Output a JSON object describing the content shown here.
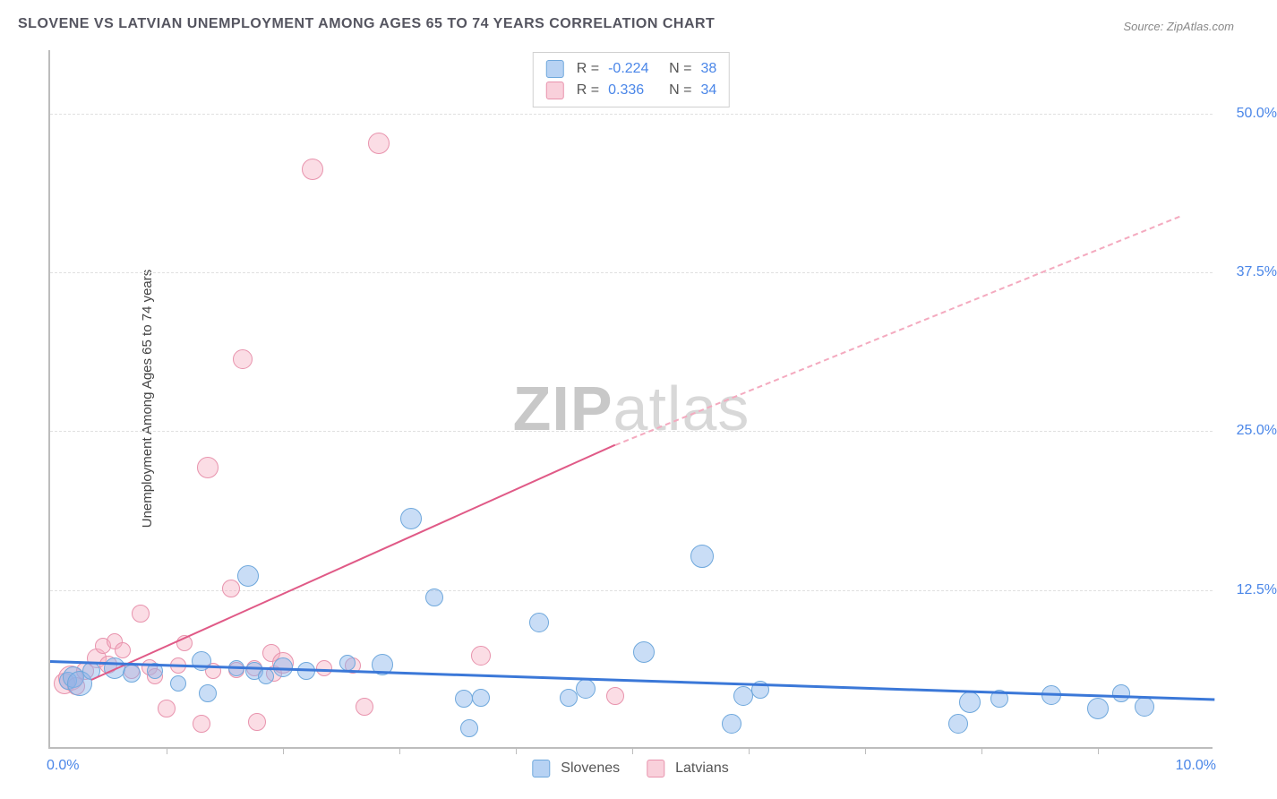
{
  "title": "SLOVENE VS LATVIAN UNEMPLOYMENT AMONG AGES 65 TO 74 YEARS CORRELATION CHART",
  "source": "Source: ZipAtlas.com",
  "ylabel": "Unemployment Among Ages 65 to 74 years",
  "watermark_a": "ZIP",
  "watermark_b": "atlas",
  "chart": {
    "type": "scatter",
    "xlim": [
      0,
      10
    ],
    "ylim": [
      0,
      55
    ],
    "x_ticks_minor": [
      1,
      2,
      3,
      4,
      5,
      6,
      7,
      8,
      9
    ],
    "y_gridlines": [
      12.5,
      25.0,
      37.5,
      50.0
    ],
    "xtick_labels": {
      "min": "0.0%",
      "max": "10.0%"
    },
    "ytick_labels": [
      "12.5%",
      "25.0%",
      "37.5%",
      "50.0%"
    ],
    "background_color": "#ffffff",
    "grid_color": "#e0e0e0",
    "axis_color": "#bdbdbd",
    "series": {
      "slovenes": {
        "label": "Slovenes",
        "color_fill": "#a8cdf0",
        "color_stroke": "#6fa8dc",
        "R": "-0.224",
        "N": "38",
        "trend": {
          "x1": 0,
          "y1": 7.0,
          "x2": 10,
          "y2": 4.0,
          "color": "#3b78d8",
          "width": 3,
          "style": "solid"
        },
        "points": [
          {
            "x": 0.15,
            "y": 5.2,
            "r": 10
          },
          {
            "x": 0.2,
            "y": 5.5,
            "r": 12
          },
          {
            "x": 0.25,
            "y": 5.0,
            "r": 14
          },
          {
            "x": 0.35,
            "y": 6.0,
            "r": 10
          },
          {
            "x": 0.55,
            "y": 6.2,
            "r": 12
          },
          {
            "x": 0.7,
            "y": 5.8,
            "r": 10
          },
          {
            "x": 0.9,
            "y": 6.0,
            "r": 9
          },
          {
            "x": 1.1,
            "y": 5.0,
            "r": 9
          },
          {
            "x": 1.3,
            "y": 6.8,
            "r": 11
          },
          {
            "x": 1.35,
            "y": 4.2,
            "r": 10
          },
          {
            "x": 1.6,
            "y": 6.2,
            "r": 9
          },
          {
            "x": 1.7,
            "y": 13.5,
            "r": 12
          },
          {
            "x": 1.75,
            "y": 6.0,
            "r": 10
          },
          {
            "x": 1.85,
            "y": 5.6,
            "r": 9
          },
          {
            "x": 2.0,
            "y": 6.3,
            "r": 11
          },
          {
            "x": 2.2,
            "y": 6.0,
            "r": 10
          },
          {
            "x": 2.55,
            "y": 6.6,
            "r": 9
          },
          {
            "x": 2.85,
            "y": 6.5,
            "r": 12
          },
          {
            "x": 3.1,
            "y": 18.0,
            "r": 12
          },
          {
            "x": 3.3,
            "y": 11.8,
            "r": 10
          },
          {
            "x": 3.55,
            "y": 3.8,
            "r": 10
          },
          {
            "x": 3.6,
            "y": 1.5,
            "r": 10
          },
          {
            "x": 3.7,
            "y": 3.9,
            "r": 10
          },
          {
            "x": 4.2,
            "y": 9.8,
            "r": 11
          },
          {
            "x": 4.45,
            "y": 3.9,
            "r": 10
          },
          {
            "x": 4.6,
            "y": 4.6,
            "r": 11
          },
          {
            "x": 5.1,
            "y": 7.5,
            "r": 12
          },
          {
            "x": 5.6,
            "y": 15.0,
            "r": 13
          },
          {
            "x": 5.85,
            "y": 1.8,
            "r": 11
          },
          {
            "x": 5.95,
            "y": 4.0,
            "r": 11
          },
          {
            "x": 6.1,
            "y": 4.5,
            "r": 10
          },
          {
            "x": 7.8,
            "y": 1.8,
            "r": 11
          },
          {
            "x": 7.9,
            "y": 3.5,
            "r": 12
          },
          {
            "x": 8.15,
            "y": 3.8,
            "r": 10
          },
          {
            "x": 8.6,
            "y": 4.1,
            "r": 11
          },
          {
            "x": 9.0,
            "y": 3.0,
            "r": 12
          },
          {
            "x": 9.2,
            "y": 4.2,
            "r": 10
          },
          {
            "x": 9.4,
            "y": 3.2,
            "r": 11
          }
        ]
      },
      "latvians": {
        "label": "Latvians",
        "color_fill": "#f8c5d4",
        "color_stroke": "#e893ad",
        "R": "0.336",
        "N": "34",
        "trend_solid": {
          "x1": 0.35,
          "y1": 5.5,
          "x2": 4.85,
          "y2": 24.0,
          "color": "#e05a87",
          "width": 2.5,
          "style": "solid"
        },
        "trend_dash": {
          "x1": 4.85,
          "y1": 24.0,
          "x2": 9.7,
          "y2": 42.0,
          "color": "#f4aabf",
          "width": 2,
          "style": "dashed"
        },
        "points": [
          {
            "x": 0.12,
            "y": 5.0,
            "r": 12
          },
          {
            "x": 0.18,
            "y": 5.4,
            "r": 14
          },
          {
            "x": 0.22,
            "y": 4.8,
            "r": 10
          },
          {
            "x": 0.3,
            "y": 6.0,
            "r": 10
          },
          {
            "x": 0.4,
            "y": 7.0,
            "r": 11
          },
          {
            "x": 0.45,
            "y": 8.0,
            "r": 9
          },
          {
            "x": 0.5,
            "y": 6.5,
            "r": 10
          },
          {
            "x": 0.55,
            "y": 8.3,
            "r": 9
          },
          {
            "x": 0.62,
            "y": 7.6,
            "r": 9
          },
          {
            "x": 0.7,
            "y": 6.0,
            "r": 9
          },
          {
            "x": 0.78,
            "y": 10.5,
            "r": 10
          },
          {
            "x": 0.85,
            "y": 6.3,
            "r": 9
          },
          {
            "x": 0.9,
            "y": 5.6,
            "r": 9
          },
          {
            "x": 1.0,
            "y": 3.0,
            "r": 10
          },
          {
            "x": 1.1,
            "y": 6.4,
            "r": 9
          },
          {
            "x": 1.15,
            "y": 8.2,
            "r": 9
          },
          {
            "x": 1.3,
            "y": 1.8,
            "r": 10
          },
          {
            "x": 1.35,
            "y": 22.0,
            "r": 12
          },
          {
            "x": 1.4,
            "y": 6.0,
            "r": 9
          },
          {
            "x": 1.55,
            "y": 12.5,
            "r": 10
          },
          {
            "x": 1.6,
            "y": 6.1,
            "r": 9
          },
          {
            "x": 1.65,
            "y": 30.5,
            "r": 11
          },
          {
            "x": 1.75,
            "y": 6.2,
            "r": 9
          },
          {
            "x": 1.78,
            "y": 2.0,
            "r": 10
          },
          {
            "x": 1.9,
            "y": 7.4,
            "r": 10
          },
          {
            "x": 1.92,
            "y": 5.8,
            "r": 9
          },
          {
            "x": 2.0,
            "y": 6.6,
            "r": 12
          },
          {
            "x": 2.25,
            "y": 45.5,
            "r": 12
          },
          {
            "x": 2.35,
            "y": 6.2,
            "r": 9
          },
          {
            "x": 2.6,
            "y": 6.4,
            "r": 9
          },
          {
            "x": 2.7,
            "y": 3.2,
            "r": 10
          },
          {
            "x": 2.82,
            "y": 47.5,
            "r": 12
          },
          {
            "x": 3.7,
            "y": 7.2,
            "r": 11
          },
          {
            "x": 4.85,
            "y": 4.0,
            "r": 10
          }
        ]
      }
    }
  },
  "stats_box": {
    "rows": [
      {
        "swatch": "blue",
        "r_label": "R =",
        "r_val": "-0.224",
        "n_label": "N =",
        "n_val": "38"
      },
      {
        "swatch": "pink",
        "r_label": "R =",
        "r_val": " 0.336",
        "n_label": "N =",
        "n_val": "34"
      }
    ]
  },
  "legend": {
    "items": [
      {
        "swatch": "blue",
        "label": "Slovenes"
      },
      {
        "swatch": "pink",
        "label": "Latvians"
      }
    ]
  }
}
